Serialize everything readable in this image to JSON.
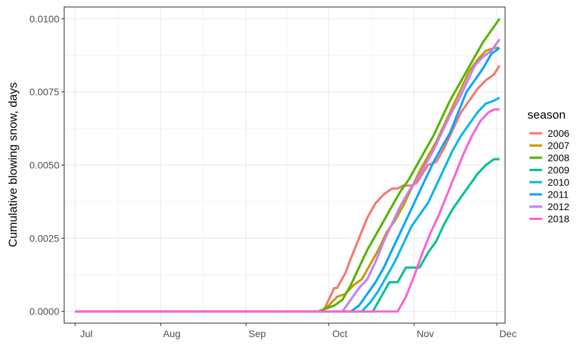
{
  "chart_data": {
    "type": "line",
    "title": "",
    "xlabel": "",
    "ylabel": "Cumulative blowing snow, days",
    "x_tick_labels": [
      "Jul",
      "Aug",
      "Sep",
      "Oct",
      "Nov",
      "Dec"
    ],
    "y_tick_labels": [
      "0.0000",
      "0.0025",
      "0.0050",
      "0.0075",
      "0.0100"
    ],
    "ylim": [
      -0.0004,
      0.0104
    ],
    "xlim_days": [
      -4,
      156
    ],
    "x_unit": "days since Jul 1",
    "grid": true,
    "legend": {
      "title": "season",
      "position": "right"
    },
    "series": [
      {
        "name": "2006",
        "color": "#F8766D",
        "x": [
          0,
          90,
          94,
          95,
          98,
          100,
          103,
          106,
          109,
          112,
          115,
          117,
          119,
          122,
          124,
          128,
          131,
          134,
          137,
          140,
          143,
          146,
          149,
          152,
          154
        ],
        "y": [
          0,
          0,
          0.0008,
          0.0008,
          0.0013,
          0.0018,
          0.0025,
          0.0032,
          0.0037,
          0.004,
          0.0042,
          0.0042,
          0.0043,
          0.0043,
          0.0044,
          0.005,
          0.0051,
          0.0056,
          0.0062,
          0.0068,
          0.0072,
          0.0076,
          0.0079,
          0.0081,
          0.0084
        ]
      },
      {
        "name": "2007",
        "color": "#C49A00",
        "x": [
          0,
          89,
          92,
          95,
          98,
          101,
          104,
          107,
          110,
          113,
          116,
          119,
          122,
          125,
          128,
          131,
          134,
          137,
          140,
          143,
          146,
          149,
          152,
          154
        ],
        "y": [
          0,
          0,
          0.0002,
          0.0005,
          0.0006,
          0.0009,
          0.0011,
          0.0016,
          0.0021,
          0.0027,
          0.0031,
          0.0036,
          0.0042,
          0.0048,
          0.0053,
          0.0058,
          0.0064,
          0.007,
          0.0076,
          0.0082,
          0.0086,
          0.0089,
          0.009,
          0.009
        ]
      },
      {
        "name": "2008",
        "color": "#53B400",
        "x": [
          0,
          88,
          91,
          94,
          97,
          100,
          103,
          106,
          109,
          112,
          115,
          118,
          121,
          124,
          127,
          130,
          133,
          136,
          139,
          142,
          145,
          148,
          151,
          154
        ],
        "y": [
          0,
          0,
          0.0001,
          0.0002,
          0.0004,
          0.0009,
          0.0015,
          0.0021,
          0.0026,
          0.0031,
          0.0036,
          0.0041,
          0.0045,
          0.005,
          0.0055,
          0.006,
          0.0066,
          0.0072,
          0.0077,
          0.0082,
          0.0087,
          0.0092,
          0.0096,
          0.01
        ]
      },
      {
        "name": "2009",
        "color": "#00C094",
        "x": [
          0,
          108,
          111,
          114,
          117,
          120,
          122,
          125,
          128,
          131,
          134,
          137,
          140,
          143,
          146,
          149,
          152,
          154
        ],
        "y": [
          0,
          0,
          0.0005,
          0.001,
          0.001,
          0.0015,
          0.0015,
          0.0015,
          0.002,
          0.0024,
          0.003,
          0.0035,
          0.0039,
          0.0043,
          0.0047,
          0.005,
          0.0052,
          0.0052
        ]
      },
      {
        "name": "2010",
        "color": "#00B6EB",
        "x": [
          0,
          104,
          107,
          110,
          113,
          116,
          119,
          122,
          125,
          128,
          131,
          134,
          137,
          140,
          143,
          146,
          149,
          152,
          154
        ],
        "y": [
          0,
          0,
          0.0003,
          0.0007,
          0.0012,
          0.0017,
          0.0023,
          0.0029,
          0.0033,
          0.0037,
          0.0043,
          0.0049,
          0.0055,
          0.006,
          0.0064,
          0.0068,
          0.0071,
          0.0072,
          0.0073
        ]
      },
      {
        "name": "2011",
        "color": "#06A4FF",
        "x": [
          0,
          100,
          103,
          106,
          109,
          112,
          115,
          118,
          121,
          124,
          127,
          130,
          133,
          136,
          139,
          142,
          145,
          148,
          151,
          154
        ],
        "y": [
          0,
          0,
          0.0002,
          0.0006,
          0.001,
          0.0015,
          0.0021,
          0.0027,
          0.0033,
          0.0039,
          0.0045,
          0.0051,
          0.0056,
          0.0061,
          0.0068,
          0.0075,
          0.0079,
          0.0083,
          0.0088,
          0.009
        ]
      },
      {
        "name": "2012",
        "color": "#C77CFF",
        "x": [
          0,
          97,
          100,
          103,
          106,
          109,
          112,
          115,
          118,
          121,
          124,
          127,
          130,
          133,
          136,
          139,
          142,
          145,
          148,
          151,
          154
        ],
        "y": [
          0,
          0,
          0.0004,
          0.0008,
          0.0011,
          0.0017,
          0.0024,
          0.003,
          0.0036,
          0.0041,
          0.0045,
          0.005,
          0.0055,
          0.0061,
          0.0067,
          0.0072,
          0.0078,
          0.0084,
          0.0087,
          0.0089,
          0.0093
        ]
      },
      {
        "name": "2018",
        "color": "#FB61D7",
        "x": [
          0,
          117,
          120,
          123,
          126,
          129,
          132,
          135,
          138,
          141,
          144,
          147,
          150,
          152,
          154
        ],
        "y": [
          0,
          0,
          0.0005,
          0.0012,
          0.002,
          0.0027,
          0.0033,
          0.004,
          0.0047,
          0.0054,
          0.006,
          0.0065,
          0.0068,
          0.0069,
          0.0069
        ]
      }
    ]
  }
}
